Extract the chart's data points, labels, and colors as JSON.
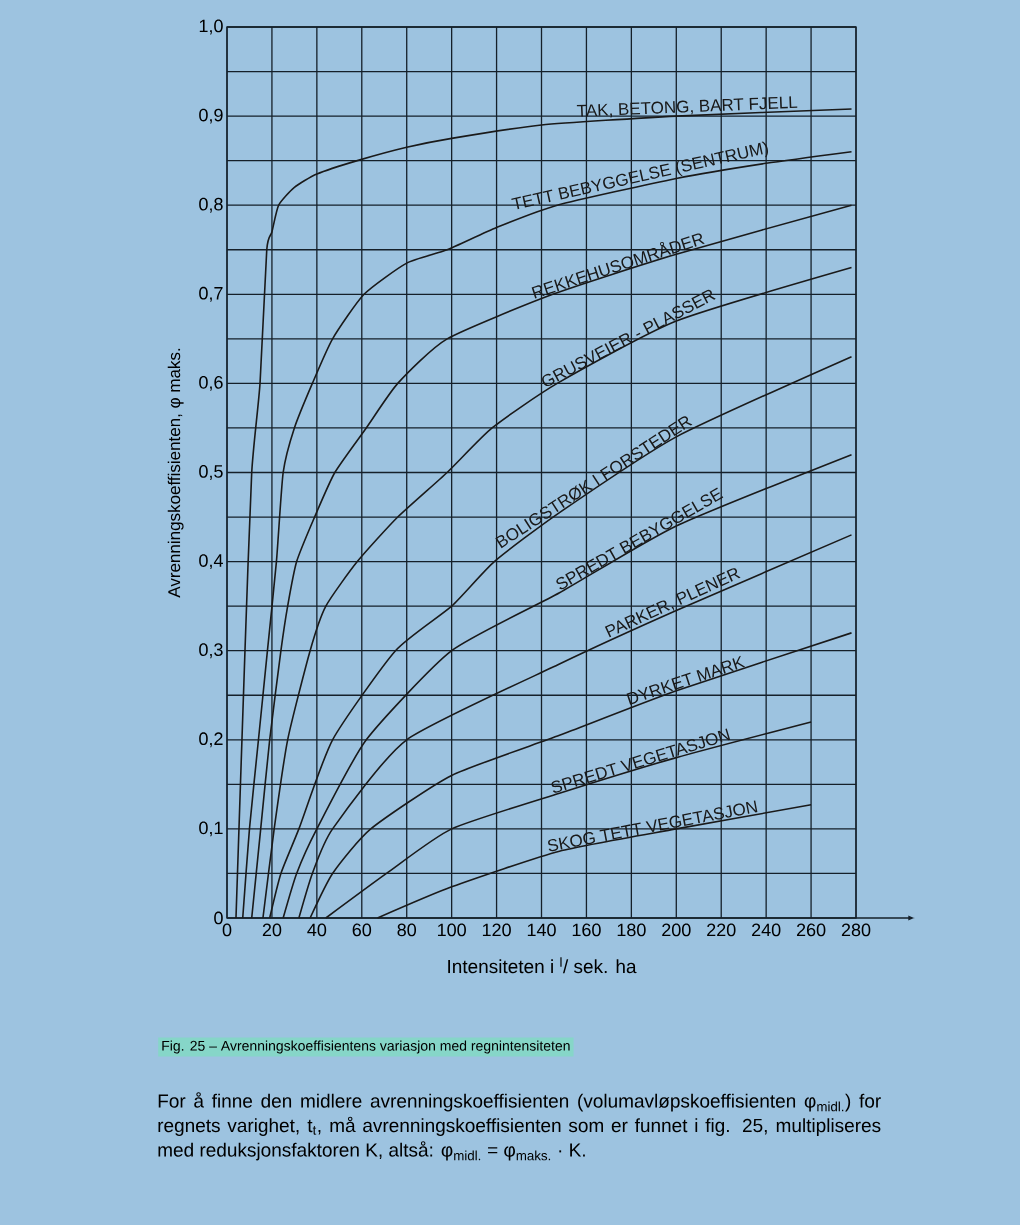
{
  "chart_data": {
    "type": "line",
    "xlabel": "Intensiteten i $^{l}$/ sek. ha",
    "ylabel": "Avrenningskoeffisienten,  φ maks.",
    "xlim": [
      0,
      280
    ],
    "ylim": [
      0,
      1.0
    ],
    "xticks": [
      0,
      20,
      40,
      60,
      80,
      100,
      120,
      140,
      160,
      180,
      200,
      220,
      240,
      260,
      280
    ],
    "yticks": [
      {
        "value": 0,
        "label": "0"
      },
      {
        "value": 0.05,
        "label": null
      },
      {
        "value": 0.1,
        "label": "0,1"
      },
      {
        "value": 0.15,
        "label": null
      },
      {
        "value": 0.2,
        "label": "0,2"
      },
      {
        "value": 0.25,
        "label": null
      },
      {
        "value": 0.3,
        "label": "0,3"
      },
      {
        "value": 0.35,
        "label": null
      },
      {
        "value": 0.4,
        "label": "0,4"
      },
      {
        "value": 0.45,
        "label": null
      },
      {
        "value": 0.5,
        "label": "0,5"
      },
      {
        "value": 0.55,
        "label": null
      },
      {
        "value": 0.6,
        "label": "0,6"
      },
      {
        "value": 0.65,
        "label": null
      },
      {
        "value": 0.7,
        "label": "0,7"
      },
      {
        "value": 0.75,
        "label": null
      },
      {
        "value": 0.8,
        "label": "0,8"
      },
      {
        "value": 0.85,
        "label": null
      },
      {
        "value": 0.9,
        "label": "0,9"
      },
      {
        "value": 0.95,
        "label": null
      },
      {
        "value": 1.0,
        "label": "1,0"
      }
    ],
    "grid": true,
    "series": [
      {
        "name": "TAK, BETONG, BART FJELL",
        "color": "#1a1a1a",
        "x": [
          4,
          8,
          11,
          14.7,
          17.7,
          20,
          23,
          30,
          40,
          58,
          80,
          100,
          140,
          200,
          278
        ],
        "values": [
          0,
          0.3,
          0.5,
          0.6,
          0.75,
          0.77,
          0.8,
          0.82,
          0.835,
          0.85,
          0.865,
          0.875,
          0.89,
          0.9,
          0.908
        ]
      },
      {
        "name": "TETT BEBYGGELSE (SENTRUM)",
        "color": "#1a1a1a",
        "x": [
          7,
          10,
          14,
          18,
          22,
          25,
          30,
          38,
          47,
          61,
          80,
          98,
          120,
          147,
          200,
          240,
          278
        ],
        "values": [
          0,
          0.1,
          0.2,
          0.3,
          0.4,
          0.5,
          0.55,
          0.6,
          0.65,
          0.7,
          0.735,
          0.75,
          0.775,
          0.8,
          0.83,
          0.847,
          0.86
        ]
      },
      {
        "name": "REKKEHUSOMRÅDER",
        "color": "#1a1a1a",
        "x": [
          11,
          15,
          19,
          24,
          27,
          31,
          39,
          48,
          62,
          76,
          98,
          145,
          200,
          278
        ],
        "values": [
          0,
          0.1,
          0.2,
          0.3,
          0.35,
          0.4,
          0.45,
          0.5,
          0.55,
          0.6,
          0.65,
          0.7,
          0.745,
          0.8
        ]
      },
      {
        "name": "GRUSVEIER - PLASSER",
        "color": "#1a1a1a",
        "x": [
          16,
          21,
          27,
          37,
          44,
          58,
          76,
          98,
          118,
          147,
          200,
          278
        ],
        "values": [
          0,
          0.1,
          0.2,
          0.3,
          0.35,
          0.4,
          0.45,
          0.5,
          0.55,
          0.6,
          0.67,
          0.73
        ]
      },
      {
        "name": "BOLIGSTRØK I FORSTEDER",
        "color": "#1a1a1a",
        "x": [
          19,
          24,
          32,
          47,
          75,
          100,
          119,
          148,
          200,
          278
        ],
        "values": [
          0,
          0.05,
          0.1,
          0.2,
          0.3,
          0.35,
          0.4,
          0.455,
          0.54,
          0.63
        ]
      },
      {
        "name": "SPREDT BEBYGGELSE",
        "color": "#1a1a1a",
        "x": [
          25,
          31,
          40,
          62,
          100,
          148,
          200,
          278
        ],
        "values": [
          0,
          0.05,
          0.1,
          0.2,
          0.3,
          0.365,
          0.44,
          0.52
        ]
      },
      {
        "name": "PARKER, PLENER",
        "color": "#1a1a1a",
        "x": [
          32,
          38,
          47,
          80,
          148,
          200,
          278
        ],
        "values": [
          0,
          0.05,
          0.1,
          0.2,
          0.285,
          0.345,
          0.43
        ]
      },
      {
        "name": "DYRKET MARK",
        "color": "#1a1a1a",
        "x": [
          37,
          47,
          64,
          100,
          148,
          200,
          278
        ],
        "values": [
          0,
          0.05,
          0.1,
          0.16,
          0.205,
          0.255,
          0.32
        ]
      },
      {
        "name": "SPREDT VEGETASJON",
        "color": "#1a1a1a",
        "x": [
          44,
          71,
          100,
          148,
          200,
          260
        ],
        "values": [
          0,
          0.05,
          0.1,
          0.14,
          0.18,
          0.22
        ]
      },
      {
        "name": "SKOG TETT VEGETASJON",
        "color": "#1a1a1a",
        "x": [
          67,
          100,
          148,
          200,
          260
        ],
        "values": [
          0,
          0.035,
          0.075,
          0.1,
          0.127
        ]
      }
    ],
    "annotations": [
      "Fig. 25 – Avrenningskoeffisientens variasjon med regnintensiteten",
      "For å finne den midlere avrenningskoeffisienten (volumavløpskoeffisienten φ$_{midl.}$) for regnets varighet, t$_{t}$, må avrenningskoeffisienten som er funnet i fig. 25, multipliseres med reduksjonsfaktoren K, altså: φ$_{midl.}$ = φ$_{maks.}$ · K."
    ]
  }
}
